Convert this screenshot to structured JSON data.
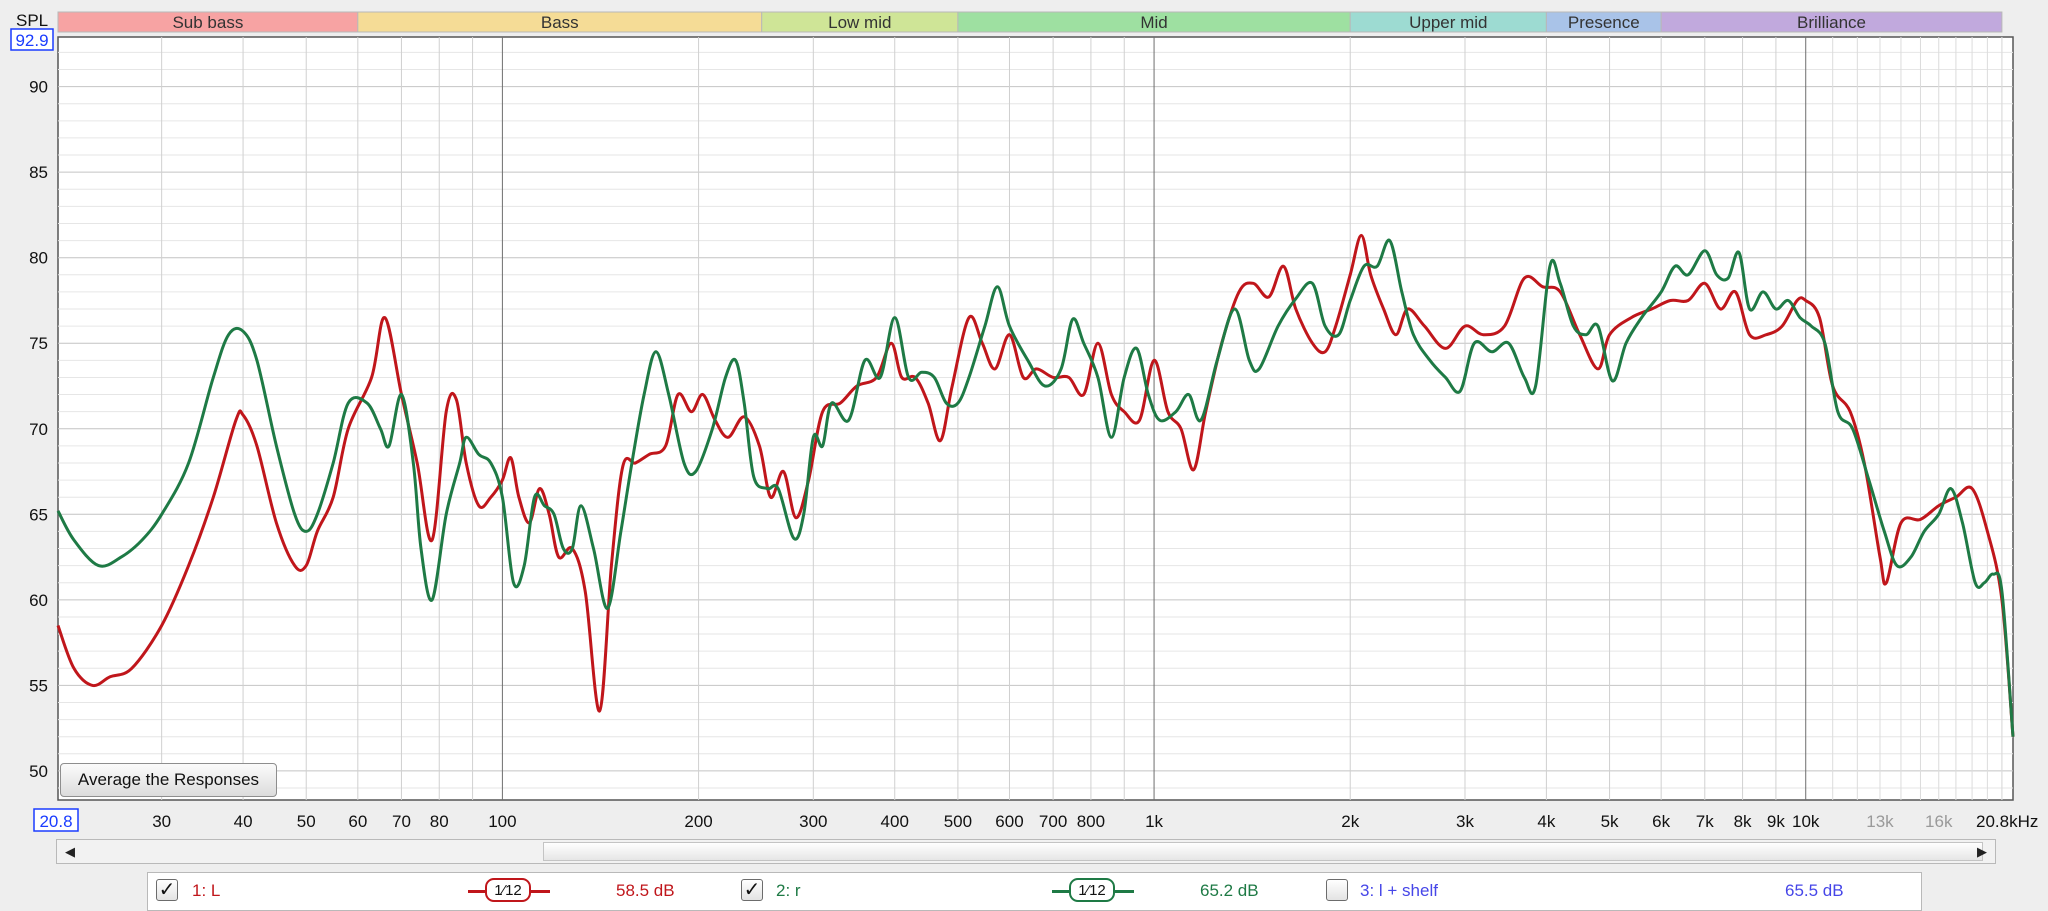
{
  "chart_data": {
    "type": "line",
    "ylabel": "SPL",
    "y_top_value": "92.9",
    "ylim": [
      48.3,
      92.9
    ],
    "y_ticks": [
      50,
      55,
      60,
      65,
      70,
      75,
      80,
      85,
      90
    ],
    "xlim": [
      20.8,
      20800
    ],
    "x_scale": "log",
    "x_start_label": "20.8",
    "x_ticks": [
      {
        "value": 30,
        "label": "30"
      },
      {
        "value": 40,
        "label": "40"
      },
      {
        "value": 50,
        "label": "50"
      },
      {
        "value": 60,
        "label": "60"
      },
      {
        "value": 70,
        "label": "70"
      },
      {
        "value": 80,
        "label": "80"
      },
      {
        "value": 100,
        "label": "100"
      },
      {
        "value": 200,
        "label": "200"
      },
      {
        "value": 300,
        "label": "300"
      },
      {
        "value": 400,
        "label": "400"
      },
      {
        "value": 500,
        "label": "500"
      },
      {
        "value": 600,
        "label": "600"
      },
      {
        "value": 700,
        "label": "700"
      },
      {
        "value": 800,
        "label": "800"
      },
      {
        "value": 1000,
        "label": "1k"
      },
      {
        "value": 2000,
        "label": "2k"
      },
      {
        "value": 3000,
        "label": "3k"
      },
      {
        "value": 4000,
        "label": "4k"
      },
      {
        "value": 5000,
        "label": "5k"
      },
      {
        "value": 6000,
        "label": "6k"
      },
      {
        "value": 7000,
        "label": "7k"
      },
      {
        "value": 8000,
        "label": "8k"
      },
      {
        "value": 9000,
        "label": "9k"
      },
      {
        "value": 10000,
        "label": "10k"
      },
      {
        "value": 13000,
        "label": "13k",
        "dim": true
      },
      {
        "value": 16000,
        "label": "16k",
        "dim": true
      }
    ],
    "x_end_label": "20.8kHz",
    "bands": [
      {
        "name": "Sub bass",
        "from": 20.8,
        "to": 60,
        "color": "#f7a3a3"
      },
      {
        "name": "Bass",
        "from": 60,
        "to": 250,
        "color": "#f5dc96"
      },
      {
        "name": "Low mid",
        "from": 250,
        "to": 500,
        "color": "#cfe597"
      },
      {
        "name": "Mid",
        "from": 500,
        "to": 2000,
        "color": "#9ee0a1"
      },
      {
        "name": "Upper mid",
        "from": 2000,
        "to": 4000,
        "color": "#9ddbd2"
      },
      {
        "name": "Presence",
        "from": 4000,
        "to": 6000,
        "color": "#a9c3e8"
      },
      {
        "name": "Brilliance",
        "from": 6000,
        "to": 20000,
        "color": "#c1a9dd"
      }
    ],
    "series": [
      {
        "name": "1: L",
        "color": "#c0161b",
        "points": [
          [
            20.8,
            58.5
          ],
          [
            22,
            56
          ],
          [
            23.5,
            55
          ],
          [
            25,
            55.5
          ],
          [
            27,
            56
          ],
          [
            30,
            58.5
          ],
          [
            33,
            62
          ],
          [
            36,
            66
          ],
          [
            39,
            70.5
          ],
          [
            40,
            70.8
          ],
          [
            42,
            69
          ],
          [
            45,
            64.5
          ],
          [
            48,
            62
          ],
          [
            50,
            62
          ],
          [
            52,
            64
          ],
          [
            55,
            66
          ],
          [
            58,
            70
          ],
          [
            63,
            73
          ],
          [
            66,
            76.5
          ],
          [
            70,
            72
          ],
          [
            74,
            68
          ],
          [
            78,
            63.5
          ],
          [
            82,
            71
          ],
          [
            85,
            71.7
          ],
          [
            88,
            68
          ],
          [
            92,
            65.5
          ],
          [
            96,
            66
          ],
          [
            100,
            67
          ],
          [
            103,
            68.3
          ],
          [
            106,
            66
          ],
          [
            110,
            64.5
          ],
          [
            114,
            66.5
          ],
          [
            118,
            65
          ],
          [
            122,
            62.5
          ],
          [
            128,
            63
          ],
          [
            134,
            60.5
          ],
          [
            141,
            53.5
          ],
          [
            147,
            62
          ],
          [
            153,
            67.8
          ],
          [
            160,
            68
          ],
          [
            168,
            68.5
          ],
          [
            178,
            69
          ],
          [
            186,
            72
          ],
          [
            195,
            71
          ],
          [
            203,
            72
          ],
          [
            212,
            70.5
          ],
          [
            222,
            69.5
          ],
          [
            235,
            70.7
          ],
          [
            248,
            69
          ],
          [
            258,
            66
          ],
          [
            270,
            67.5
          ],
          [
            282,
            64.8
          ],
          [
            295,
            67
          ],
          [
            310,
            71
          ],
          [
            330,
            71.5
          ],
          [
            350,
            72.5
          ],
          [
            375,
            73
          ],
          [
            395,
            75
          ],
          [
            410,
            73
          ],
          [
            430,
            73
          ],
          [
            450,
            71.5
          ],
          [
            470,
            69.3
          ],
          [
            490,
            72.5
          ],
          [
            520,
            76.5
          ],
          [
            545,
            75
          ],
          [
            570,
            73.5
          ],
          [
            600,
            75.5
          ],
          [
            630,
            73
          ],
          [
            660,
            73.5
          ],
          [
            700,
            73
          ],
          [
            740,
            73
          ],
          [
            780,
            72
          ],
          [
            820,
            75
          ],
          [
            860,
            72
          ],
          [
            900,
            71
          ],
          [
            950,
            70.5
          ],
          [
            1000,
            74
          ],
          [
            1050,
            71
          ],
          [
            1100,
            70
          ],
          [
            1150,
            67.6
          ],
          [
            1200,
            71
          ],
          [
            1270,
            75
          ],
          [
            1350,
            78
          ],
          [
            1420,
            78.5
          ],
          [
            1500,
            77.7
          ],
          [
            1580,
            79.5
          ],
          [
            1650,
            77
          ],
          [
            1750,
            75
          ],
          [
            1830,
            74.5
          ],
          [
            1900,
            76
          ],
          [
            2000,
            79
          ],
          [
            2080,
            81.3
          ],
          [
            2150,
            79
          ],
          [
            2250,
            77
          ],
          [
            2350,
            75.5
          ],
          [
            2450,
            77
          ],
          [
            2600,
            76
          ],
          [
            2800,
            74.7
          ],
          [
            3000,
            76
          ],
          [
            3200,
            75.5
          ],
          [
            3450,
            76
          ],
          [
            3700,
            78.8
          ],
          [
            3950,
            78.3
          ],
          [
            4200,
            78
          ],
          [
            4500,
            75.5
          ],
          [
            4800,
            73.5
          ],
          [
            5000,
            75.5
          ],
          [
            5400,
            76.5
          ],
          [
            5800,
            77
          ],
          [
            6200,
            77.5
          ],
          [
            6600,
            77.5
          ],
          [
            7000,
            78.5
          ],
          [
            7400,
            77
          ],
          [
            7800,
            78
          ],
          [
            8200,
            75.5
          ],
          [
            8700,
            75.5
          ],
          [
            9200,
            76
          ],
          [
            9700,
            77.5
          ],
          [
            10000,
            77.5
          ],
          [
            10500,
            76.5
          ],
          [
            11000,
            72.5
          ],
          [
            11700,
            71
          ],
          [
            12300,
            68
          ],
          [
            13000,
            62.5
          ],
          [
            13300,
            61
          ],
          [
            14000,
            64.5
          ],
          [
            15000,
            64.7
          ],
          [
            16000,
            65.5
          ],
          [
            17000,
            66
          ],
          [
            18000,
            66.5
          ],
          [
            19000,
            64
          ],
          [
            20000,
            60
          ],
          [
            20800,
            52
          ]
        ]
      },
      {
        "name": "2: r",
        "color": "#1e7a45",
        "points": [
          [
            20.8,
            65.2
          ],
          [
            22,
            63.5
          ],
          [
            24,
            62
          ],
          [
            26,
            62.5
          ],
          [
            28,
            63.5
          ],
          [
            30,
            65
          ],
          [
            33,
            68
          ],
          [
            36,
            73
          ],
          [
            38,
            75.5
          ],
          [
            40,
            75.7
          ],
          [
            42,
            74
          ],
          [
            45,
            69
          ],
          [
            48,
            65
          ],
          [
            50,
            64
          ],
          [
            52,
            65
          ],
          [
            55,
            68
          ],
          [
            58,
            71.5
          ],
          [
            62,
            71.5
          ],
          [
            65,
            70
          ],
          [
            67,
            69
          ],
          [
            70,
            72
          ],
          [
            73,
            68
          ],
          [
            75,
            63
          ],
          [
            78,
            60
          ],
          [
            82,
            65
          ],
          [
            86,
            68
          ],
          [
            88,
            69.5
          ],
          [
            92,
            68.5
          ],
          [
            96,
            68
          ],
          [
            100,
            66
          ],
          [
            104,
            61
          ],
          [
            108,
            62
          ],
          [
            112,
            66
          ],
          [
            116,
            65.5
          ],
          [
            120,
            65
          ],
          [
            124,
            63
          ],
          [
            128,
            63
          ],
          [
            132,
            65.5
          ],
          [
            138,
            63
          ],
          [
            145,
            59.5
          ],
          [
            152,
            64
          ],
          [
            158,
            68
          ],
          [
            165,
            72
          ],
          [
            172,
            74.5
          ],
          [
            180,
            72
          ],
          [
            190,
            68
          ],
          [
            198,
            67.5
          ],
          [
            210,
            70
          ],
          [
            220,
            73
          ],
          [
            228,
            74
          ],
          [
            235,
            71.5
          ],
          [
            243,
            67.2
          ],
          [
            255,
            66.5
          ],
          [
            265,
            66.5
          ],
          [
            280,
            63.6
          ],
          [
            290,
            65
          ],
          [
            300,
            69.5
          ],
          [
            310,
            69
          ],
          [
            320,
            71.5
          ],
          [
            340,
            70.5
          ],
          [
            360,
            74
          ],
          [
            380,
            73
          ],
          [
            400,
            76.5
          ],
          [
            420,
            73
          ],
          [
            440,
            73.3
          ],
          [
            460,
            73
          ],
          [
            480,
            71.5
          ],
          [
            500,
            71.5
          ],
          [
            520,
            73
          ],
          [
            550,
            76
          ],
          [
            575,
            78.3
          ],
          [
            600,
            76
          ],
          [
            640,
            74
          ],
          [
            680,
            72.5
          ],
          [
            720,
            73.5
          ],
          [
            750,
            76.4
          ],
          [
            780,
            75
          ],
          [
            820,
            73
          ],
          [
            860,
            69.5
          ],
          [
            900,
            73
          ],
          [
            940,
            74.7
          ],
          [
            980,
            72
          ],
          [
            1020,
            70.5
          ],
          [
            1080,
            71
          ],
          [
            1130,
            72
          ],
          [
            1180,
            70.5
          ],
          [
            1250,
            74
          ],
          [
            1330,
            77
          ],
          [
            1400,
            74
          ],
          [
            1450,
            73.5
          ],
          [
            1550,
            76
          ],
          [
            1650,
            77.6
          ],
          [
            1750,
            78.5
          ],
          [
            1830,
            76
          ],
          [
            1920,
            75.5
          ],
          [
            2000,
            77.5
          ],
          [
            2100,
            79.5
          ],
          [
            2200,
            79.5
          ],
          [
            2300,
            81
          ],
          [
            2400,
            78
          ],
          [
            2500,
            75.5
          ],
          [
            2650,
            74
          ],
          [
            2800,
            73
          ],
          [
            2950,
            72.2
          ],
          [
            3100,
            75
          ],
          [
            3300,
            74.5
          ],
          [
            3500,
            75
          ],
          [
            3700,
            73
          ],
          [
            3850,
            72.5
          ],
          [
            4050,
            79.5
          ],
          [
            4200,
            78.5
          ],
          [
            4400,
            76
          ],
          [
            4600,
            75.5
          ],
          [
            4800,
            76
          ],
          [
            5050,
            72.8
          ],
          [
            5300,
            75
          ],
          [
            5600,
            76.5
          ],
          [
            6000,
            78
          ],
          [
            6300,
            79.5
          ],
          [
            6600,
            79
          ],
          [
            7000,
            80.4
          ],
          [
            7300,
            79
          ],
          [
            7600,
            78.8
          ],
          [
            7900,
            80.3
          ],
          [
            8200,
            77
          ],
          [
            8600,
            78
          ],
          [
            9000,
            77
          ],
          [
            9400,
            77.5
          ],
          [
            9800,
            76.5
          ],
          [
            10200,
            76
          ],
          [
            10700,
            75
          ],
          [
            11200,
            71
          ],
          [
            11800,
            70
          ],
          [
            12500,
            67
          ],
          [
            13200,
            64
          ],
          [
            13800,
            62
          ],
          [
            14500,
            62.5
          ],
          [
            15200,
            64
          ],
          [
            16000,
            65
          ],
          [
            16700,
            66.5
          ],
          [
            17400,
            64.5
          ],
          [
            18200,
            61
          ],
          [
            18800,
            61
          ],
          [
            19400,
            61.5
          ],
          [
            20000,
            60.5
          ],
          [
            20800,
            52
          ]
        ]
      }
    ]
  },
  "button": {
    "label": "Average the Responses"
  },
  "legend": [
    {
      "label": "1: L",
      "checked": true,
      "smoothing": "1⁄12",
      "level": "58.5 dB",
      "color": "#c0161b"
    },
    {
      "label": "2: r",
      "checked": true,
      "smoothing": "1⁄12",
      "level": "65.2 dB",
      "color": "#1e7a45"
    },
    {
      "label": "3: l + shelf",
      "checked": false,
      "level": "65.5 dB",
      "color": "#4646e8"
    }
  ],
  "icons": {
    "scroll_left": "arrow-left-icon",
    "scroll_right": "arrow-right-icon",
    "check": "check-icon"
  }
}
